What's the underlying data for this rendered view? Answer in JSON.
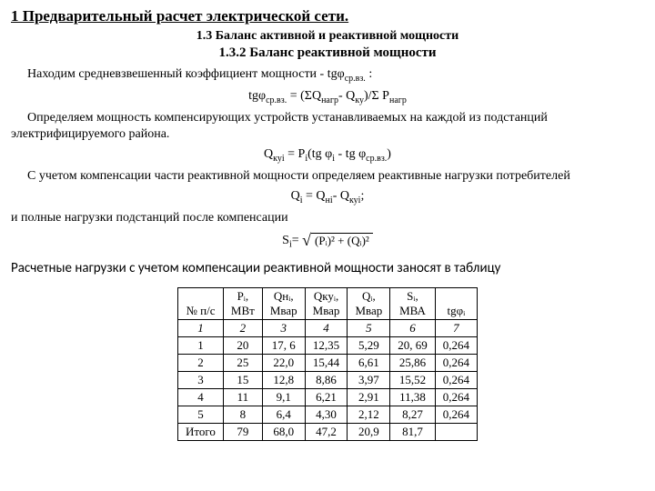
{
  "headings": {
    "h1": "1 Предварительный расчет электрической сети.",
    "h2": "1.3 Баланс активной и реактивной мощности",
    "h3": "1.3.2 Баланс реактивной мощности"
  },
  "text": {
    "p1": "Находим средневзвешенный коэффициент мощности - tgφ",
    "p1_sub": "ср.вз.",
    "p1_tail": " :",
    "f1_lhs": "tgφ",
    "f1_sub": "ср.вз.",
    "f1_eq": " = (ΣQ",
    "f1_sub2": "нагр",
    "f1_mid": "- Q",
    "f1_sub3": "ку",
    "f1_mid2": ")/Σ P",
    "f1_sub4": "нагр",
    "p2": "Определяем мощность компенсирующих устройств устанавливаемых на каждой из подстанций электрифицируемого района.",
    "f2_lhs": "Q",
    "f2_sub1": "куi",
    "f2_eq": " = P",
    "f2_sub2": "i",
    "f2_mid1": "(tg φ",
    "f2_sub3": "i",
    "f2_mid2": " - tg φ",
    "f2_sub4": "ср.вз.",
    "f2_tail": ")",
    "p3": "С учетом компенсации части реактивной мощности определяем реактивные нагрузки потребителей",
    "f3_lhs": "Q",
    "f3_sub1": "i",
    "f3_eq": " = Q",
    "f3_sub2": "нi",
    "f3_mid": "- Q",
    "f3_sub3": "куi",
    "f3_tail": ";",
    "p4": "и полные нагрузки подстанций после компенсации",
    "f4_lhs": "S",
    "f4_sub": "i",
    "f4_eq": "= ",
    "f4_root": "(Pᵢ)² + (Qᵢ)²",
    "summary": "Расчетные нагрузки с учетом компенсации реактивной мощности заносят в таблицу"
  },
  "table": {
    "headers": [
      {
        "line1": "№ п/с",
        "line2": ""
      },
      {
        "line1": "Pᵢ,",
        "line2": "МВт"
      },
      {
        "line1": "Qнᵢ,",
        "line2": "Мвар"
      },
      {
        "line1": "Qкуᵢ,",
        "line2": "Мвар"
      },
      {
        "line1": "Qᵢ,",
        "line2": "Мвар"
      },
      {
        "line1": "Sᵢ,",
        "line2": "МВА"
      },
      {
        "line1": "tgφᵢ",
        "line2": ""
      }
    ],
    "subhead": [
      "1",
      "2",
      "3",
      "4",
      "5",
      "6",
      "7"
    ],
    "rows": [
      [
        "1",
        "20",
        "17, 6",
        "12,35",
        "5,29",
        "20, 69",
        "0,264"
      ],
      [
        "2",
        "25",
        "22,0",
        "15,44",
        "6,61",
        "25,86",
        "0,264"
      ],
      [
        "3",
        "15",
        "12,8",
        "8,86",
        "3,97",
        "15,52",
        "0,264"
      ],
      [
        "4",
        "11",
        "9,1",
        "6,21",
        "2,91",
        "11,38",
        "0,264"
      ],
      [
        "5",
        "8",
        "6,4",
        "4,30",
        "2,12",
        "8,27",
        "0,264"
      ]
    ],
    "total_label": "Итого",
    "total": [
      "79",
      "68,0",
      "47,2",
      "20,9",
      "81,7",
      ""
    ]
  }
}
